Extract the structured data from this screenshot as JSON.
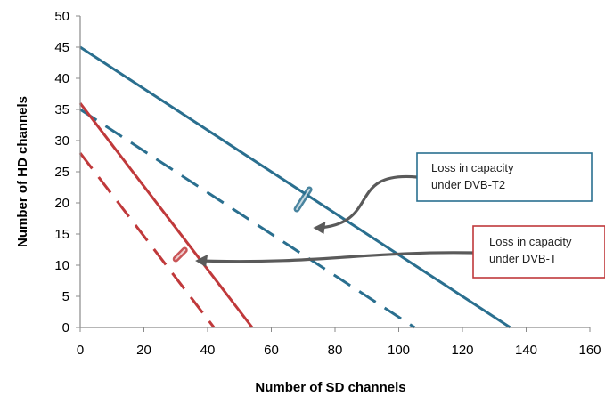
{
  "chart_data": {
    "type": "line",
    "xlabel": "Number of SD channels",
    "ylabel": "Number of HD channels",
    "xlim": [
      0,
      160
    ],
    "ylim": [
      0,
      50
    ],
    "x_ticks": [
      0,
      20,
      40,
      60,
      80,
      100,
      120,
      140,
      160
    ],
    "y_ticks": [
      0,
      5,
      10,
      15,
      20,
      25,
      30,
      35,
      40,
      45,
      50
    ],
    "grid": false,
    "series": [
      {
        "color": "#2a6f8f",
        "style": "solid",
        "points": [
          [
            0,
            45
          ],
          [
            135,
            0
          ]
        ]
      },
      {
        "color": "#2a6f8f",
        "style": "dashed",
        "points": [
          [
            0,
            35
          ],
          [
            105,
            0
          ]
        ]
      },
      {
        "color": "#c0393b",
        "style": "solid",
        "points": [
          [
            0,
            36
          ],
          [
            54,
            0
          ]
        ]
      },
      {
        "color": "#c0393b",
        "style": "dashed",
        "points": [
          [
            0,
            28
          ],
          [
            42,
            0
          ]
        ]
      }
    ],
    "annotations": [
      {
        "line1": "Loss in capacity",
        "line2": "under DVB-T2",
        "border_color": "#2a6f8f",
        "points_to": [
          72,
          16
        ],
        "marker_at": [
          68,
          19
        ]
      },
      {
        "line1": "Loss in capacity",
        "line2": "under DVB-T",
        "border_color": "#c0393b",
        "points_to": [
          35,
          11
        ],
        "marker_at": [
          30,
          11
        ]
      }
    ]
  }
}
